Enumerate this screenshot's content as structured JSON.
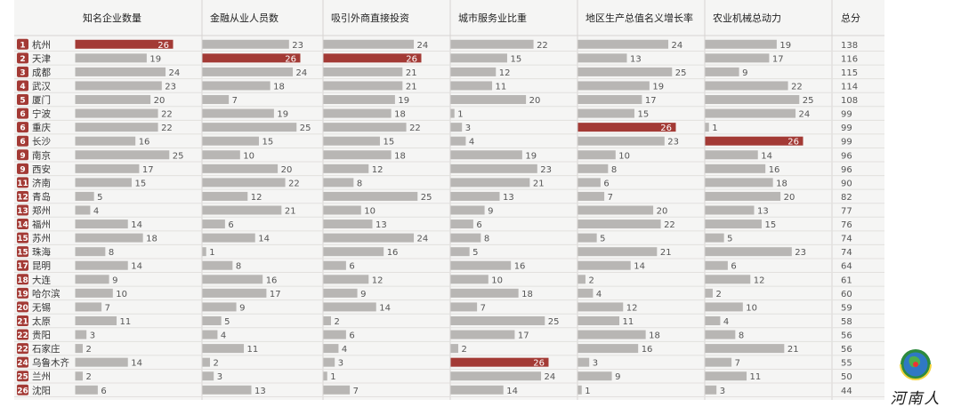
{
  "chart_data": {
    "type": "table",
    "columns": [
      "知名企业数量",
      "金融从业人员数",
      "吸引外商直接投资",
      "城市服务业比重",
      "地区生产总值名义增长率",
      "农业机械总动力"
    ],
    "total_label": "总分",
    "highlight_color": "#a33a35",
    "bar_color": "#b8b6b4",
    "max_value": 26,
    "rows": [
      {
        "rank": "1",
        "city": "杭州",
        "values": [
          26,
          23,
          24,
          22,
          24,
          19
        ],
        "total": "138"
      },
      {
        "rank": "2",
        "city": "天津",
        "values": [
          19,
          26,
          26,
          15,
          13,
          17
        ],
        "total": "116"
      },
      {
        "rank": "3",
        "city": "成都",
        "values": [
          24,
          24,
          21,
          12,
          25,
          9
        ],
        "total": "115"
      },
      {
        "rank": "4",
        "city": "武汉",
        "values": [
          23,
          18,
          21,
          11,
          19,
          22
        ],
        "total": "114"
      },
      {
        "rank": "5",
        "city": "厦门",
        "values": [
          20,
          7,
          19,
          20,
          17,
          25
        ],
        "total": "108"
      },
      {
        "rank": "6",
        "city": "宁波",
        "values": [
          22,
          19,
          18,
          1,
          15,
          24
        ],
        "total": "99"
      },
      {
        "rank": "6",
        "city": "重庆",
        "values": [
          22,
          25,
          22,
          3,
          26,
          1
        ],
        "total": "99"
      },
      {
        "rank": "6",
        "city": "长沙",
        "values": [
          16,
          15,
          15,
          4,
          23,
          26
        ],
        "total": "99"
      },
      {
        "rank": "9",
        "city": "南京",
        "values": [
          25,
          10,
          18,
          19,
          10,
          14
        ],
        "total": "96"
      },
      {
        "rank": "9",
        "city": "西安",
        "values": [
          17,
          20,
          12,
          23,
          8,
          16
        ],
        "total": "96"
      },
      {
        "rank": "11",
        "city": "济南",
        "values": [
          15,
          22,
          8,
          21,
          6,
          18
        ],
        "total": "90"
      },
      {
        "rank": "12",
        "city": "青岛",
        "values": [
          5,
          12,
          25,
          13,
          7,
          20
        ],
        "total": "82"
      },
      {
        "rank": "13",
        "city": "郑州",
        "values": [
          4,
          21,
          10,
          9,
          20,
          13
        ],
        "total": "77"
      },
      {
        "rank": "14",
        "city": "福州",
        "values": [
          14,
          6,
          13,
          6,
          22,
          15
        ],
        "total": "76"
      },
      {
        "rank": "15",
        "city": "苏州",
        "values": [
          18,
          14,
          24,
          8,
          5,
          5
        ],
        "total": "74"
      },
      {
        "rank": "15",
        "city": "珠海",
        "values": [
          8,
          1,
          16,
          5,
          21,
          23
        ],
        "total": "74"
      },
      {
        "rank": "17",
        "city": "昆明",
        "values": [
          14,
          8,
          6,
          16,
          14,
          6
        ],
        "total": "64"
      },
      {
        "rank": "18",
        "city": "大连",
        "values": [
          9,
          16,
          12,
          10,
          2,
          12
        ],
        "total": "61"
      },
      {
        "rank": "19",
        "city": "哈尔滨",
        "values": [
          10,
          17,
          9,
          18,
          4,
          2
        ],
        "total": "60"
      },
      {
        "rank": "20",
        "city": "无锡",
        "values": [
          7,
          9,
          14,
          7,
          12,
          10
        ],
        "total": "59"
      },
      {
        "rank": "21",
        "city": "太原",
        "values": [
          11,
          5,
          2,
          25,
          11,
          4
        ],
        "total": "58"
      },
      {
        "rank": "22",
        "city": "贵阳",
        "values": [
          3,
          4,
          6,
          17,
          18,
          8
        ],
        "total": "56"
      },
      {
        "rank": "22",
        "city": "石家庄",
        "values": [
          2,
          11,
          4,
          2,
          16,
          21
        ],
        "total": "56"
      },
      {
        "rank": "24",
        "city": "乌鲁木齐",
        "values": [
          14,
          2,
          3,
          26,
          3,
          7
        ],
        "total": "55"
      },
      {
        "rank": "25",
        "city": "兰州",
        "values": [
          2,
          3,
          1,
          24,
          9,
          11
        ],
        "total": "50"
      },
      {
        "rank": "26",
        "city": "沈阳",
        "values": [
          6,
          13,
          7,
          14,
          1,
          3
        ],
        "total": "44"
      }
    ]
  },
  "logo": {
    "text": "河南人"
  }
}
